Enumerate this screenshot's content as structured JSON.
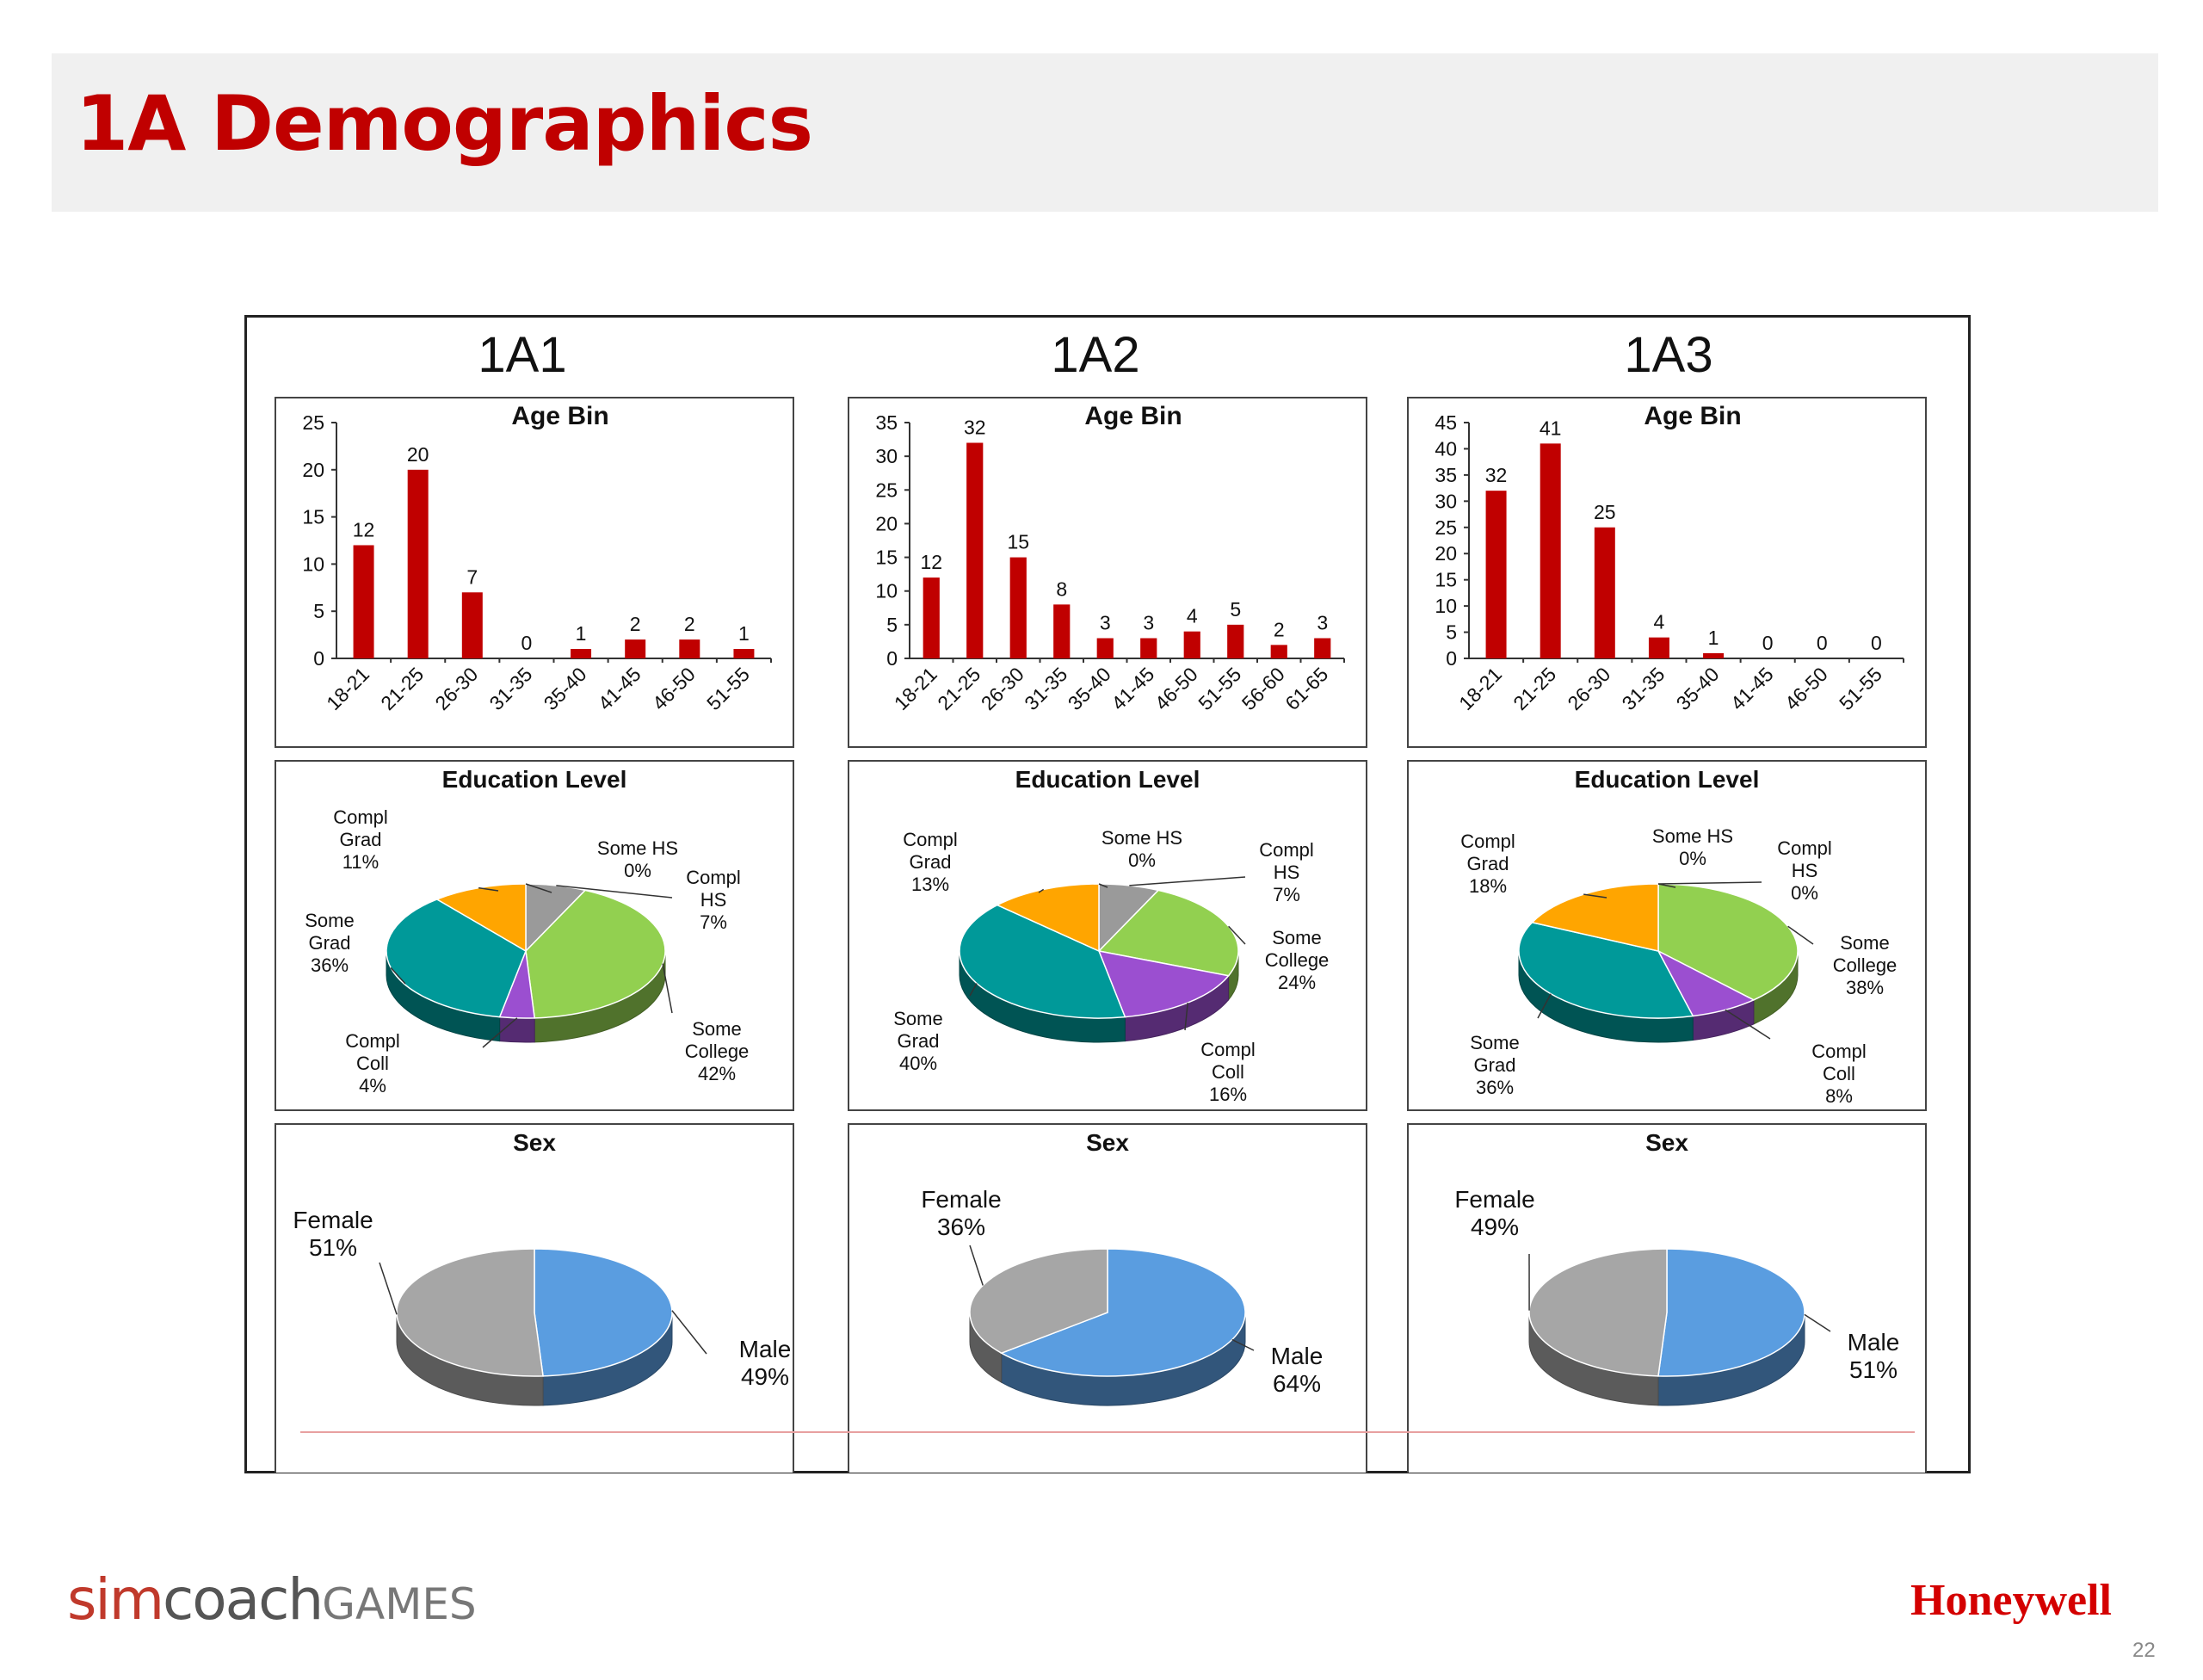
{
  "slide": {
    "title": "1A Demographics",
    "page_number": "22"
  },
  "logos": {
    "simcoach_a": "sim",
    "simcoach_b": "coach",
    "simcoach_c": "GAMES",
    "honeywell": "Honeywell"
  },
  "colors": {
    "bar": "#c00000",
    "title": "#c00000",
    "some_hs": "#9a9a9a",
    "compl_hs": "#2a78a8",
    "some_college": "#92d050",
    "compl_coll": "#9b4fd0",
    "some_grad": "#009999",
    "compl_grad": "#ffa500",
    "female": "#a6a6a6",
    "male": "#5a9de0"
  },
  "chart_data": [
    {
      "group": "1A1",
      "type": "bar",
      "title": "Age Bin",
      "ylim": [
        0,
        25
      ],
      "yticks": [
        0,
        5,
        10,
        15,
        20,
        25
      ],
      "categories": [
        "18-21",
        "21-25",
        "26-30",
        "31-35",
        "35-40",
        "41-45",
        "46-50",
        "51-55"
      ],
      "values": [
        12,
        20,
        7,
        0,
        1,
        2,
        2,
        1
      ]
    },
    {
      "group": "1A2",
      "type": "bar",
      "title": "Age Bin",
      "ylim": [
        0,
        35
      ],
      "yticks": [
        0,
        5,
        10,
        15,
        20,
        25,
        30,
        35
      ],
      "categories": [
        "18-21",
        "21-25",
        "26-30",
        "31-35",
        "35-40",
        "41-45",
        "46-50",
        "51-55",
        "56-60",
        "61-65"
      ],
      "values": [
        12,
        32,
        15,
        8,
        3,
        3,
        4,
        5,
        2,
        3
      ]
    },
    {
      "group": "1A3",
      "type": "bar",
      "title": "Age Bin",
      "ylim": [
        0,
        45
      ],
      "yticks": [
        0,
        5,
        10,
        15,
        20,
        25,
        30,
        35,
        40,
        45
      ],
      "categories": [
        "18-21",
        "21-25",
        "26-30",
        "31-35",
        "35-40",
        "41-45",
        "46-50",
        "51-55"
      ],
      "values": [
        32,
        41,
        25,
        4,
        1,
        0,
        0,
        0
      ]
    },
    {
      "group": "1A1",
      "type": "pie",
      "title": "Education Level",
      "slices": [
        {
          "name": "Some HS",
          "label": [
            "Some HS",
            "0%"
          ],
          "value": 0,
          "color": "some_hs"
        },
        {
          "name": "Compl HS",
          "label": [
            "Compl",
            "HS",
            "7%"
          ],
          "value": 7,
          "color": "some_hs"
        },
        {
          "name": "Some College",
          "label": [
            "Some",
            "College",
            "42%"
          ],
          "value": 42,
          "color": "some_college"
        },
        {
          "name": "Compl Coll",
          "label": [
            "Compl",
            "Coll",
            "4%"
          ],
          "value": 4,
          "color": "compl_coll"
        },
        {
          "name": "Some Grad",
          "label": [
            "Some",
            "Grad",
            "36%"
          ],
          "value": 36,
          "color": "some_grad"
        },
        {
          "name": "Compl Grad",
          "label": [
            "Compl",
            "Grad",
            "11%"
          ],
          "value": 11,
          "color": "compl_grad"
        }
      ]
    },
    {
      "group": "1A2",
      "type": "pie",
      "title": "Education Level",
      "slices": [
        {
          "name": "Some HS",
          "label": [
            "Some HS",
            "0%"
          ],
          "value": 0,
          "color": "some_hs"
        },
        {
          "name": "Compl HS",
          "label": [
            "Compl",
            "HS",
            "7%"
          ],
          "value": 7,
          "color": "some_hs"
        },
        {
          "name": "Some College",
          "label": [
            "Some",
            "College",
            "24%"
          ],
          "value": 24,
          "color": "some_college"
        },
        {
          "name": "Compl Coll",
          "label": [
            "Compl",
            "Coll",
            "16%"
          ],
          "value": 16,
          "color": "compl_coll"
        },
        {
          "name": "Some Grad",
          "label": [
            "Some",
            "Grad",
            "40%"
          ],
          "value": 40,
          "color": "some_grad"
        },
        {
          "name": "Compl Grad",
          "label": [
            "Compl",
            "Grad",
            "13%"
          ],
          "value": 13,
          "color": "compl_grad"
        }
      ]
    },
    {
      "group": "1A3",
      "type": "pie",
      "title": "Education Level",
      "slices": [
        {
          "name": "Some HS",
          "label": [
            "Some HS",
            "0%"
          ],
          "value": 0,
          "color": "some_hs"
        },
        {
          "name": "Compl HS",
          "label": [
            "Compl",
            "HS",
            "0%"
          ],
          "value": 0,
          "color": "compl_hs"
        },
        {
          "name": "Some College",
          "label": [
            "Some",
            "College",
            "38%"
          ],
          "value": 38,
          "color": "some_college"
        },
        {
          "name": "Compl Coll",
          "label": [
            "Compl",
            "Coll",
            "8%"
          ],
          "value": 8,
          "color": "compl_coll"
        },
        {
          "name": "Some Grad",
          "label": [
            "Some",
            "Grad",
            "36%"
          ],
          "value": 36,
          "color": "some_grad"
        },
        {
          "name": "Compl Grad",
          "label": [
            "Compl",
            "Grad",
            "18%"
          ],
          "value": 18,
          "color": "compl_grad"
        }
      ]
    },
    {
      "group": "1A1",
      "type": "pie",
      "title": "Sex",
      "slices": [
        {
          "name": "Male",
          "label": [
            "Male",
            "49%"
          ],
          "value": 49,
          "color": "male"
        },
        {
          "name": "Female",
          "label": [
            "Female",
            "51%"
          ],
          "value": 51,
          "color": "female"
        }
      ]
    },
    {
      "group": "1A2",
      "type": "pie",
      "title": "Sex",
      "slices": [
        {
          "name": "Male",
          "label": [
            "Male",
            "64%"
          ],
          "value": 64,
          "color": "male"
        },
        {
          "name": "Female",
          "label": [
            "Female",
            "36%"
          ],
          "value": 36,
          "color": "female"
        }
      ]
    },
    {
      "group": "1A3",
      "type": "pie",
      "title": "Sex",
      "slices": [
        {
          "name": "Male",
          "label": [
            "Male",
            "51%"
          ],
          "value": 51,
          "color": "male"
        },
        {
          "name": "Female",
          "label": [
            "Female",
            "49%"
          ],
          "value": 49,
          "color": "female"
        }
      ]
    }
  ]
}
